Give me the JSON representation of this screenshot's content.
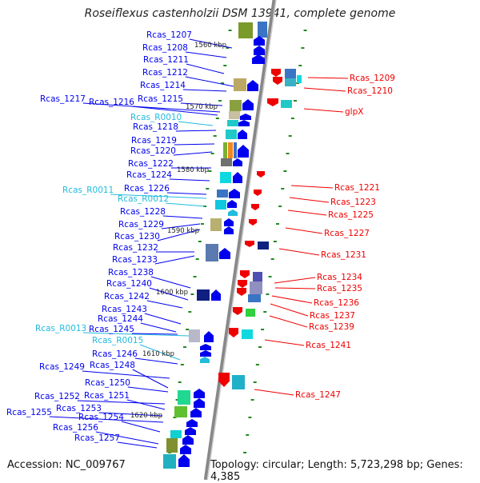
{
  "title": "Roseiflexus castenholzii DSM 13941, complete genome",
  "accession": "Accession: NC_009767",
  "topology": "Topology: circular; Length: 5,723,298 bp; Genes: 4,385",
  "colors": {
    "forward_gene": "#0000ee",
    "reverse_gene": "#ee0000",
    "rna_gene": "#22bbdd",
    "backbone": "#888888",
    "tick": "#228822"
  },
  "kbp_marks": [
    "1560 kbp",
    "1570 kbp",
    "1580 kbp",
    "1590 kbp",
    "1600 kbp",
    "1610 kbp",
    "1620 kbp"
  ],
  "left_labels": [
    {
      "text": "Rcas_1207",
      "kind": "forward"
    },
    {
      "text": "Rcas_1208",
      "kind": "forward"
    },
    {
      "text": "Rcas_1211",
      "kind": "forward"
    },
    {
      "text": "Rcas_1212",
      "kind": "forward"
    },
    {
      "text": "Rcas_1214",
      "kind": "forward"
    },
    {
      "text": "Rcas_1217",
      "kind": "forward"
    },
    {
      "text": "Rcas_1216",
      "kind": "forward"
    },
    {
      "text": "Rcas_1215",
      "kind": "forward"
    },
    {
      "text": "Rcas_R0010",
      "kind": "rna"
    },
    {
      "text": "Rcas_1218",
      "kind": "forward"
    },
    {
      "text": "Rcas_1219",
      "kind": "forward"
    },
    {
      "text": "Rcas_1220",
      "kind": "forward"
    },
    {
      "text": "Rcas_1222",
      "kind": "forward"
    },
    {
      "text": "Rcas_1224",
      "kind": "forward"
    },
    {
      "text": "Rcas_1226",
      "kind": "forward"
    },
    {
      "text": "Rcas_R0011",
      "kind": "rna"
    },
    {
      "text": "Rcas_R0012",
      "kind": "rna"
    },
    {
      "text": "Rcas_1228",
      "kind": "forward"
    },
    {
      "text": "Rcas_1229",
      "kind": "forward"
    },
    {
      "text": "Rcas_1230",
      "kind": "forward"
    },
    {
      "text": "Rcas_1232",
      "kind": "forward"
    },
    {
      "text": "Rcas_1233",
      "kind": "forward"
    },
    {
      "text": "Rcas_1238",
      "kind": "forward"
    },
    {
      "text": "Rcas_1240",
      "kind": "forward"
    },
    {
      "text": "Rcas_1242",
      "kind": "forward"
    },
    {
      "text": "Rcas_1243",
      "kind": "forward"
    },
    {
      "text": "Rcas_1244",
      "kind": "forward"
    },
    {
      "text": "Rcas_R0013",
      "kind": "rna"
    },
    {
      "text": "Rcas_1245",
      "kind": "forward"
    },
    {
      "text": "Rcas_R0015",
      "kind": "rna"
    },
    {
      "text": "Rcas_1246",
      "kind": "forward"
    },
    {
      "text": "Rcas_1249",
      "kind": "forward"
    },
    {
      "text": "Rcas_1248",
      "kind": "forward"
    },
    {
      "text": "Rcas_1250",
      "kind": "forward"
    },
    {
      "text": "Rcas_1252",
      "kind": "forward"
    },
    {
      "text": "Rcas_1251",
      "kind": "forward"
    },
    {
      "text": "Rcas_1253",
      "kind": "forward"
    },
    {
      "text": "Rcas_1255",
      "kind": "forward"
    },
    {
      "text": "Rcas_1254",
      "kind": "forward"
    },
    {
      "text": "Rcas_1256",
      "kind": "forward"
    },
    {
      "text": "Rcas_1257",
      "kind": "forward"
    }
  ],
  "right_labels": [
    {
      "text": "Rcas_1209",
      "kind": "reverse"
    },
    {
      "text": "Rcas_1210",
      "kind": "reverse"
    },
    {
      "text": "glpX",
      "kind": "reverse"
    },
    {
      "text": "Rcas_1221",
      "kind": "reverse"
    },
    {
      "text": "Rcas_1223",
      "kind": "reverse"
    },
    {
      "text": "Rcas_1225",
      "kind": "reverse"
    },
    {
      "text": "Rcas_1227",
      "kind": "reverse"
    },
    {
      "text": "Rcas_1231",
      "kind": "reverse"
    },
    {
      "text": "Rcas_1234",
      "kind": "reverse"
    },
    {
      "text": "Rcas_1235",
      "kind": "reverse"
    },
    {
      "text": "Rcas_1236",
      "kind": "reverse"
    },
    {
      "text": "Rcas_1237",
      "kind": "reverse"
    },
    {
      "text": "Rcas_1239",
      "kind": "reverse"
    },
    {
      "text": "Rcas_1241",
      "kind": "reverse"
    },
    {
      "text": "Rcas_1247",
      "kind": "reverse"
    }
  ]
}
